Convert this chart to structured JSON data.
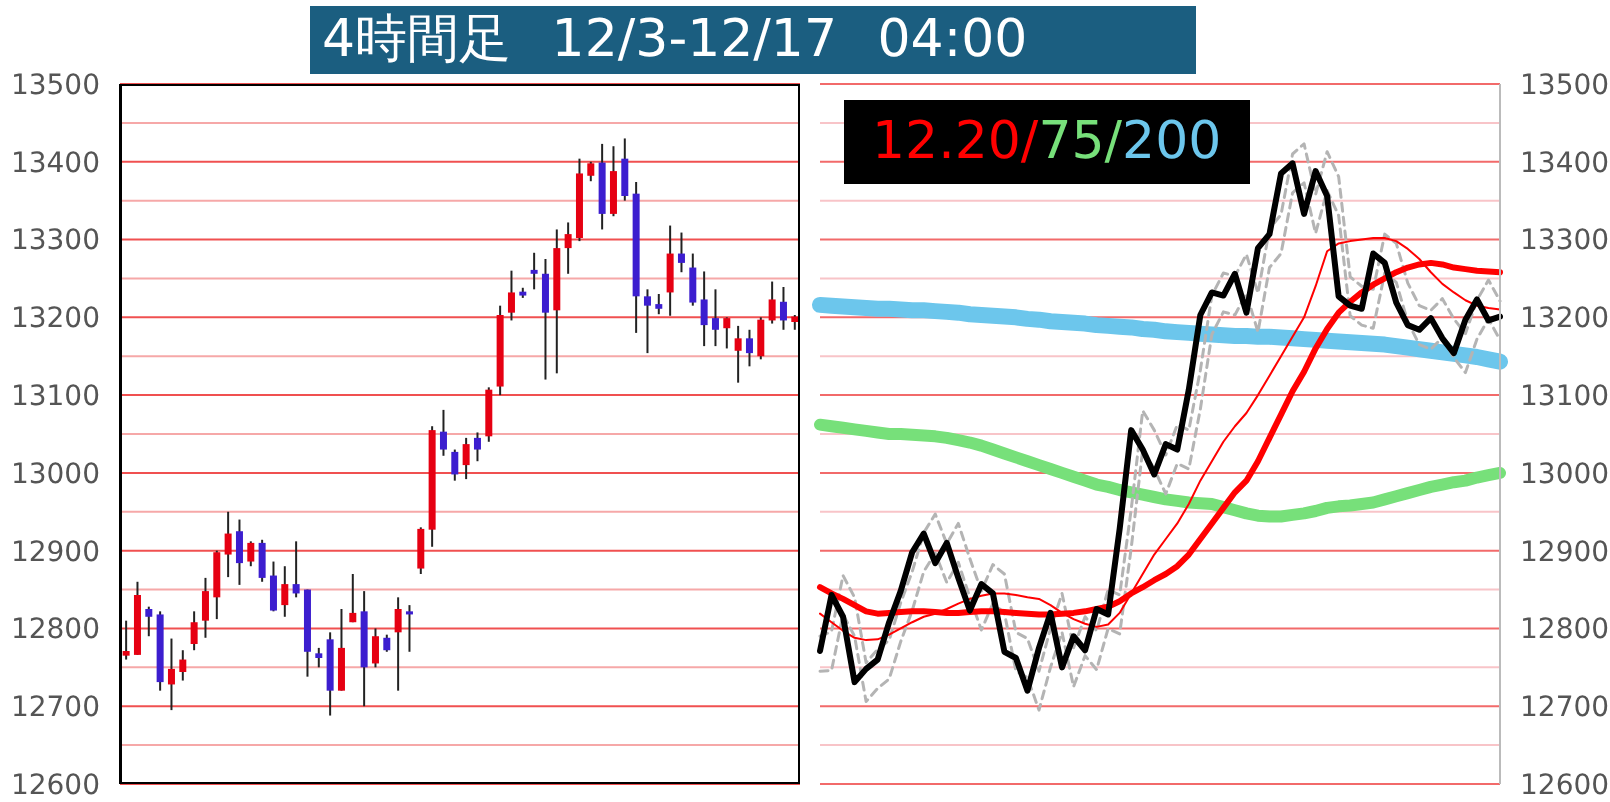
{
  "chart_data": [
    {
      "type": "candlestick",
      "title": "4時間足 12/3-12/17 04:00",
      "categories": [
        null,
        null,
        null,
        null,
        null,
        null,
        null,
        null,
        null,
        null,
        null,
        null,
        null,
        null,
        null,
        null,
        null,
        null,
        null,
        null,
        null,
        null,
        null,
        null,
        null,
        null,
        null,
        null,
        null,
        null,
        null,
        null,
        null,
        null,
        null,
        null,
        null,
        null,
        null,
        null,
        null,
        null,
        null,
        null,
        null,
        null,
        null,
        null,
        null,
        null,
        null,
        null,
        null,
        null,
        null,
        null,
        null,
        null,
        null,
        null
      ],
      "ohlc": [
        [
          12765,
          12810,
          12760,
          12771
        ],
        [
          12766,
          12860,
          12766,
          12843
        ],
        [
          12825,
          12828,
          12790,
          12815
        ],
        [
          12818,
          12822,
          12720,
          12731
        ],
        [
          12728,
          12787,
          12695,
          12748
        ],
        [
          12744,
          12772,
          12733,
          12760
        ],
        [
          12780,
          12822,
          12772,
          12808
        ],
        [
          12810,
          12865,
          12788,
          12848
        ],
        [
          12840,
          12900,
          12812,
          12898
        ],
        [
          12895,
          12950,
          12866,
          12922
        ],
        [
          12925,
          12940,
          12856,
          12884
        ],
        [
          12886,
          12912,
          12880,
          12910
        ],
        [
          12910,
          12914,
          12860,
          12865
        ],
        [
          12868,
          12886,
          12822,
          12823
        ],
        [
          12830,
          12880,
          12815,
          12857
        ],
        [
          12857,
          12912,
          12840,
          12845
        ],
        [
          12850,
          12850,
          12738,
          12770
        ],
        [
          12768,
          12775,
          12750,
          12762
        ],
        [
          12786,
          12795,
          12688,
          12720
        ],
        [
          12720,
          12825,
          12720,
          12775
        ],
        [
          12808,
          12870,
          12808,
          12820
        ],
        [
          12822,
          12848,
          12700,
          12750
        ],
        [
          12755,
          12800,
          12750,
          12790
        ],
        [
          12788,
          12792,
          12770,
          12772
        ],
        [
          12795,
          12840,
          12720,
          12825
        ],
        [
          12822,
          12830,
          12770,
          12818
        ],
        [
          12877,
          12930,
          12870,
          12928
        ],
        [
          12927,
          13060,
          12905,
          13055
        ],
        [
          13053,
          13081,
          13022,
          13030
        ],
        [
          13027,
          13030,
          12990,
          12998
        ],
        [
          13010,
          13045,
          12992,
          13037
        ],
        [
          13045,
          13052,
          13015,
          13030
        ],
        [
          13047,
          13110,
          13040,
          13107
        ],
        [
          13111,
          13215,
          13100,
          13203
        ],
        [
          13206,
          13260,
          13196,
          13232
        ],
        [
          13233,
          13238,
          13225,
          13228
        ],
        [
          13261,
          13283,
          13236,
          13256
        ],
        [
          13256,
          13275,
          13120,
          13206
        ],
        [
          13209,
          13313,
          13128,
          13289
        ],
        [
          13289,
          13322,
          13256,
          13307
        ],
        [
          13302,
          13404,
          13298,
          13385
        ],
        [
          13382,
          13400,
          13375,
          13398
        ],
        [
          13399,
          13423,
          13313,
          13333
        ],
        [
          13333,
          13420,
          13330,
          13388
        ],
        [
          13404,
          13430,
          13350,
          13356
        ],
        [
          13359,
          13374,
          13180,
          13227
        ],
        [
          13227,
          13236,
          13154,
          13215
        ],
        [
          13217,
          13230,
          13204,
          13211
        ],
        [
          13232,
          13318,
          13202,
          13282
        ],
        [
          13282,
          13309,
          13258,
          13270
        ],
        [
          13264,
          13282,
          13215,
          13219
        ],
        [
          13223,
          13259,
          13163,
          13190
        ],
        [
          13199,
          13236,
          13163,
          13184
        ],
        [
          13186,
          13200,
          13160,
          13199
        ],
        [
          13157,
          13189,
          13116,
          13173
        ],
        [
          13173,
          13184,
          13137,
          13154
        ],
        [
          13150,
          13200,
          13146,
          13197
        ],
        [
          13196,
          13246,
          13192,
          13223
        ],
        [
          13220,
          13239,
          13184,
          13196
        ],
        [
          13194,
          13203,
          13184,
          13201
        ]
      ],
      "colors": [
        "#e60012",
        "#e60012",
        "#3c1ecf",
        "#3c1ecf",
        "#e60012",
        "#e60012",
        "#e60012",
        "#e60012",
        "#e60012",
        "#e60012",
        "#3c1ecf",
        "#e60012",
        "#3c1ecf",
        "#3c1ecf",
        "#e60012",
        "#3c1ecf",
        "#3c1ecf",
        "#3c1ecf",
        "#3c1ecf",
        "#e60012",
        "#e60012",
        "#3c1ecf",
        "#e60012",
        "#3c1ecf",
        "#e60012",
        "#3c1ecf",
        "#e60012",
        "#e60012",
        "#3c1ecf",
        "#3c1ecf",
        "#e60012",
        "#3c1ecf",
        "#e60012",
        "#e60012",
        "#e60012",
        "#3c1ecf",
        "#3c1ecf",
        "#3c1ecf",
        "#e60012",
        "#e60012",
        "#e60012",
        "#e60012",
        "#3c1ecf",
        "#e60012",
        "#3c1ecf",
        "#3c1ecf",
        "#3c1ecf",
        "#3c1ecf",
        "#e60012",
        "#3c1ecf",
        "#3c1ecf",
        "#3c1ecf",
        "#3c1ecf",
        "#e60012",
        "#e60012",
        "#3c1ecf",
        "#e60012",
        "#e60012",
        "#3c1ecf",
        "#e60012"
      ],
      "ylim": [
        12600,
        13500
      ],
      "yticks": [
        12600,
        {
          "value": 12650,
          "label": null
        },
        12700,
        {
          "value": 12750,
          "label": null
        },
        12800,
        {
          "value": 12850,
          "label": null
        },
        12900,
        {
          "value": 12950,
          "label": null
        },
        13000,
        {
          "value": 13050,
          "label": null
        },
        13100,
        {
          "value": 13150,
          "label": null
        },
        13200,
        {
          "value": 13250,
          "label": null
        },
        13300,
        {
          "value": 13350,
          "label": null
        },
        13400,
        {
          "value": 13450,
          "label": null
        },
        13500
      ],
      "grid": "y",
      "tick_labels": "y"
    },
    {
      "type": "line",
      "categories": [
        null,
        null,
        null,
        null,
        null,
        null,
        null,
        null,
        null,
        null,
        null,
        null,
        null,
        null,
        null,
        null,
        null,
        null,
        null,
        null,
        null,
        null,
        null,
        null,
        null,
        null,
        null,
        null,
        null,
        null,
        null,
        null,
        null,
        null,
        null,
        null,
        null,
        null,
        null,
        null,
        null,
        null,
        null,
        null,
        null,
        null,
        null,
        null,
        null,
        null,
        null,
        null,
        null,
        null,
        null,
        null,
        null,
        null,
        null,
        null
      ],
      "series": [
        {
          "name": "12.20/",
          "color": "#ff0000",
          "values": [
            12853,
            12845,
            12838,
            12830,
            12822,
            12819,
            12820,
            12821,
            12822,
            12822,
            12821,
            12820,
            12820,
            12821,
            12822,
            12822,
            12821,
            12820,
            12819,
            12818,
            12818,
            12819,
            12820,
            12822,
            12825,
            12828,
            12835,
            12845,
            12853,
            12862,
            12870,
            12880,
            12895,
            12915,
            12935,
            12955,
            12975,
            12990,
            13015,
            13045,
            13075,
            13105,
            13130,
            13160,
            13185,
            13206,
            13220,
            13232,
            13242,
            13250,
            13258,
            13264,
            13268,
            13270,
            13268,
            13264,
            13262,
            13260,
            13259,
            13258
          ]
        },
        {
          "name": "75/",
          "color": "#77e07a",
          "values": [
            13062,
            13060,
            13058,
            13056,
            13054,
            13052,
            13050,
            13050,
            13049,
            13048,
            13047,
            13045,
            13042,
            13039,
            13035,
            13030,
            13025,
            13020,
            13015,
            13010,
            13005,
            13000,
            12995,
            12990,
            12985,
            12982,
            12978,
            12975,
            12972,
            12969,
            12966,
            12964,
            12962,
            12961,
            12960,
            12956,
            12952,
            12948,
            12945,
            12944,
            12944,
            12946,
            12948,
            12951,
            12955,
            12957,
            12958,
            12960,
            12962,
            12966,
            12970,
            12974,
            12978,
            12982,
            12985,
            12988,
            12990,
            12994,
            12997,
            13000
          ]
        },
        {
          "name": "200",
          "color": "#6cc6ec",
          "values": [
            13216,
            13215,
            13214,
            13213,
            13212,
            13211,
            13211,
            13210,
            13209,
            13209,
            13208,
            13207,
            13206,
            13204,
            13203,
            13202,
            13201,
            13200,
            13198,
            13197,
            13195,
            13194,
            13193,
            13192,
            13190,
            13189,
            13188,
            13187,
            13185,
            13184,
            13182,
            13181,
            13180,
            13179,
            13178,
            13177,
            13176,
            13176,
            13175,
            13175,
            13174,
            13173,
            13172,
            13171,
            13170,
            13169,
            13168,
            13167,
            13166,
            13165,
            13163,
            13161,
            13159,
            13157,
            13155,
            13153,
            13151,
            13149,
            13146,
            13143
          ]
        },
        {
          "color": "#ff0000",
          "values": [
            12819,
            12808,
            12797,
            12788,
            12785,
            12786,
            12792,
            12800,
            12808,
            12815,
            12819,
            12825,
            12832,
            12838,
            12842,
            12845,
            12845,
            12843,
            12840,
            12838,
            12830,
            12820,
            12812,
            12806,
            12802,
            12805,
            12820,
            12845,
            12870,
            12895,
            12915,
            12935,
            12960,
            12990,
            13015,
            13040,
            13060,
            13077,
            13100,
            13125,
            13150,
            13175,
            13200,
            13240,
            13285,
            13295,
            13298,
            13300,
            13302,
            13302,
            13298,
            13288,
            13275,
            13258,
            13243,
            13232,
            13222,
            13215,
            13212,
            13210
          ]
        },
        {
          "color": "#b4b4b4",
          "line_style": "dashed",
          "values": [
            12790,
            12796,
            12868,
            12840,
            12756,
            12773,
            12785,
            12833,
            12873,
            12923,
            12947,
            12909,
            12935,
            12890,
            12848,
            12882,
            12870,
            12795,
            12787,
            12745,
            12800,
            12845,
            12775,
            12815,
            12797,
            12850,
            12843,
            12953,
            13080,
            13055,
            13023,
            13062,
            13055,
            13132,
            13228,
            13257,
            13253,
            13281,
            13231,
            13314,
            13332,
            13410,
            13423,
            13358,
            13413,
            13381,
            13252,
            13240,
            13236,
            13307,
            13295,
            13244,
            13215,
            13209,
            13224,
            13198,
            13179,
            13222,
            13248,
            13221
          ]
        },
        {
          "color": "#b4b4b4",
          "line_style": "dashed",
          "values": [
            12745,
            12746,
            12818,
            12790,
            12706,
            12723,
            12735,
            12783,
            12823,
            12873,
            12897,
            12859,
            12885,
            12840,
            12798,
            12832,
            12820,
            12745,
            12737,
            12695,
            12750,
            12795,
            12725,
            12765,
            12747,
            12800,
            12793,
            12903,
            13030,
            13005,
            12973,
            13012,
            13005,
            13082,
            13178,
            13207,
            13203,
            13231,
            13181,
            13264,
            13282,
            13360,
            13373,
            13308,
            13363,
            13331,
            13202,
            13190,
            13186,
            13257,
            13245,
            13194,
            13165,
            13159,
            13174,
            13148,
            13129,
            13172,
            13198,
            13171
          ]
        },
        {
          "color": "#000000",
          "values": [
            12771,
            12843,
            12815,
            12731,
            12748,
            12760,
            12808,
            12848,
            12898,
            12922,
            12884,
            12910,
            12865,
            12823,
            12857,
            12845,
            12770,
            12762,
            12720,
            12775,
            12820,
            12750,
            12790,
            12772,
            12825,
            12818,
            12928,
            13055,
            13030,
            12998,
            13037,
            13030,
            13107,
            13203,
            13232,
            13228,
            13256,
            13206,
            13289,
            13307,
            13385,
            13398,
            13333,
            13388,
            13356,
            13227,
            13215,
            13211,
            13282,
            13270,
            13219,
            13190,
            13184,
            13199,
            13173,
            13154,
            13197,
            13223,
            13196,
            13201
          ]
        }
      ],
      "ylim": [
        12600,
        13500
      ],
      "yticks": [
        12600,
        {
          "value": 12650,
          "label": null
        },
        12700,
        {
          "value": 12750,
          "label": null
        },
        12800,
        {
          "value": 12850,
          "label": null
        },
        12900,
        {
          "value": 12950,
          "label": null
        },
        13000,
        {
          "value": 13050,
          "label": null
        },
        13100,
        {
          "value": 13150,
          "label": null
        },
        13200,
        {
          "value": 13250,
          "label": null
        },
        13300,
        {
          "value": 13350,
          "label": null
        },
        13400,
        {
          "value": 13450,
          "label": null
        },
        13500
      ],
      "grid": "y",
      "legend": "top left",
      "tick_labels": "y"
    }
  ]
}
